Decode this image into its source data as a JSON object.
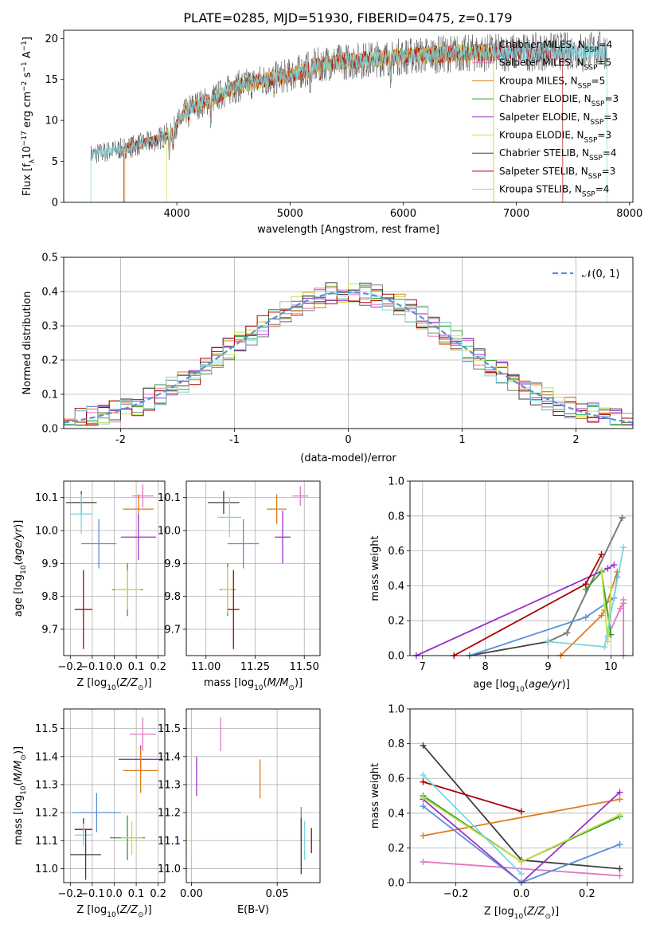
{
  "figure": {
    "suptitle": "PLATE=0285, MJD=51930, FIBERID=0475, z=0.179"
  },
  "colors": {
    "Chabrier MILES": "#7f7f7f",
    "Salpeter MILES": "#e377c2",
    "Kroupa MILES": "#e07b1a",
    "Chabrier ELODIE": "#2ca02c",
    "Salpeter ELODIE": "#9a32cd",
    "Kroupa ELODIE": "#c8e04a",
    "Chabrier STELIB": "#404040",
    "Salpeter STELIB": "#b00000",
    "Kroupa STELIB": "#7ad6e0",
    "gaussian": "#5b8fd6"
  },
  "chart_data": [
    {
      "id": "spectrum",
      "type": "line",
      "title": "PLATE=0285, MJD=51930, FIBERID=0475, z=0.179",
      "xlabel": "wavelength [Angstrom, rest frame]",
      "ylabel": "Flux [f",
      "ylabel_suffix": "10",
      "xlim": [
        3000,
        8030
      ],
      "ylim": [
        0,
        21
      ],
      "xticks": [
        4000,
        5000,
        6000,
        7000,
        8000
      ],
      "yticks": [
        0,
        5,
        10,
        15,
        20
      ],
      "data_range": [
        3240,
        7800
      ],
      "continuum": [
        [
          3240,
          5.8
        ],
        [
          3500,
          6.5
        ],
        [
          3800,
          7.5
        ],
        [
          3950,
          8.5
        ],
        [
          4100,
          11.5
        ],
        [
          4300,
          12.5
        ],
        [
          4500,
          14.0
        ],
        [
          4800,
          15.0
        ],
        [
          5000,
          15.5
        ],
        [
          5300,
          17.0
        ],
        [
          5600,
          17.3
        ],
        [
          6000,
          17.8
        ],
        [
          6500,
          18.2
        ],
        [
          7000,
          18.3
        ],
        [
          7500,
          18.5
        ],
        [
          7800,
          18.6
        ]
      ],
      "absorption_lines": [
        [
          3934,
          2.5
        ],
        [
          3968,
          2.0
        ],
        [
          4102,
          1.5
        ],
        [
          4300,
          2.5
        ],
        [
          4861,
          1.2
        ],
        [
          5175,
          2.5
        ],
        [
          5270,
          1.2
        ],
        [
          5893,
          2.5
        ],
        [
          6563,
          1.5
        ],
        [
          7590,
          1.5
        ]
      ],
      "legend": [
        {
          "label": "Chabrier MILES, N",
          "nssp": "4",
          "color": "#7f7f7f"
        },
        {
          "label": "Salpeter MILES, N",
          "nssp": "5",
          "color": "#e377c2"
        },
        {
          "label": "Kroupa MILES, N",
          "nssp": "5",
          "color": "#e07b1a"
        },
        {
          "label": "Chabrier ELODIE, N",
          "nssp": "3",
          "color": "#2ca02c"
        },
        {
          "label": "Salpeter ELODIE, N",
          "nssp": "3",
          "color": "#9a32cd"
        },
        {
          "label": "Kroupa ELODIE, N",
          "nssp": "3",
          "color": "#c8e04a"
        },
        {
          "label": "Chabrier STELIB, N",
          "nssp": "4",
          "color": "#404040"
        },
        {
          "label": "Salpeter STELIB, N",
          "nssp": "3",
          "color": "#b00000"
        },
        {
          "label": "Kroupa STELIB, N",
          "nssp": "4",
          "color": "#7ad6e0"
        }
      ],
      "model_ranges": [
        {
          "color": "#e07b1a",
          "range": [
            3540,
            6800
          ]
        },
        {
          "color": "#c8e04a",
          "range": [
            3910,
            6800
          ]
        },
        {
          "color": "#b00000",
          "range": [
            3530,
            7410
          ]
        },
        {
          "color": "#7ad6e0",
          "range": [
            3240,
            7800
          ]
        }
      ]
    },
    {
      "id": "residuals",
      "type": "line",
      "xlabel": "(data-model)/error",
      "ylabel": "Normed distribution",
      "xlim": [
        -2.5,
        2.5
      ],
      "ylim": [
        0,
        0.5
      ],
      "xticks": [
        -2,
        -1,
        0,
        1,
        2
      ],
      "yticks": [
        0.0,
        0.1,
        0.2,
        0.3,
        0.4,
        0.5
      ],
      "grid": true,
      "legend_label": "N(0,1)",
      "bin_width": 0.1,
      "series_colors": [
        "#7f7f7f",
        "#e377c2",
        "#e07b1a",
        "#2ca02c",
        "#9a32cd",
        "#c8e04a",
        "#404040",
        "#b00000",
        "#7ad6e0",
        "#5b8fd6"
      ]
    },
    {
      "id": "age_vs_Z",
      "type": "scatter",
      "xlabel": "Z [log",
      "ylabel": "age",
      "xlim": [
        -0.23,
        0.23
      ],
      "ylim": [
        9.62,
        10.15
      ],
      "xticks": [
        -0.2,
        -0.1,
        0.0,
        0.1,
        0.2
      ],
      "xticklabels": [
        "−0.2",
        "−0.1",
        "0.0",
        "0.1",
        "0.2"
      ],
      "yticks": [
        9.7,
        9.8,
        9.9,
        10.0,
        10.1
      ],
      "grid": true,
      "points": [
        {
          "color": "#404040",
          "x": -0.15,
          "xerr": 0.07,
          "y": 10.085,
          "yerr": 0.035
        },
        {
          "color": "#7ad6e0",
          "x": -0.15,
          "xerr": 0.05,
          "y": 10.05,
          "yerr": 0.06
        },
        {
          "color": "#e377c2",
          "x": 0.13,
          "xerr": 0.05,
          "y": 10.105,
          "yerr": 0.035
        },
        {
          "color": "#e07b1a",
          "x": 0.11,
          "xerr": 0.07,
          "y": 10.065,
          "yerr": 0.045
        },
        {
          "color": "#9a32cd",
          "x": 0.11,
          "xerr": 0.08,
          "y": 9.98,
          "yerr": 0.07
        },
        {
          "color": "#5b8fd6",
          "x": -0.07,
          "xerr": 0.08,
          "y": 9.96,
          "yerr": 0.075
        },
        {
          "color": "#2ca02c",
          "x": 0.06,
          "xerr": 0.07,
          "y": 9.82,
          "yerr": 0.08
        },
        {
          "color": "#c8e04a",
          "x": 0.06,
          "xerr": 0.06,
          "y": 9.82,
          "yerr": 0.06
        },
        {
          "color": "#b00000",
          "x": -0.14,
          "xerr": 0.04,
          "y": 9.76,
          "yerr": 0.12
        }
      ]
    },
    {
      "id": "age_vs_mass",
      "type": "scatter",
      "xlabel": "mass [log",
      "ylabel": "",
      "xlim": [
        10.9,
        11.58
      ],
      "ylim": [
        9.62,
        10.15
      ],
      "xticks": [
        11.0,
        11.25,
        11.5
      ],
      "xticklabels": [
        "11.00",
        "11.25",
        "11.50"
      ],
      "yticks": [
        9.7,
        9.8,
        9.9,
        10.0,
        10.1
      ],
      "grid": true,
      "points": [
        {
          "color": "#404040",
          "x": 11.09,
          "xerr": 0.08,
          "y": 10.085,
          "yerr": 0.035
        },
        {
          "color": "#7ad6e0",
          "x": 11.12,
          "xerr": 0.06,
          "y": 10.04,
          "yerr": 0.06
        },
        {
          "color": "#e377c2",
          "x": 11.48,
          "xerr": 0.04,
          "y": 10.105,
          "yerr": 0.03
        },
        {
          "color": "#e07b1a",
          "x": 11.36,
          "xerr": 0.05,
          "y": 10.065,
          "yerr": 0.045
        },
        {
          "color": "#9a32cd",
          "x": 11.39,
          "xerr": 0.04,
          "y": 9.98,
          "yerr": 0.08
        },
        {
          "color": "#5b8fd6",
          "x": 11.19,
          "xerr": 0.08,
          "y": 9.96,
          "yerr": 0.075
        },
        {
          "color": "#2ca02c",
          "x": 11.11,
          "xerr": 0.04,
          "y": 9.82,
          "yerr": 0.08
        },
        {
          "color": "#c8e04a",
          "x": 11.11,
          "xerr": 0.03,
          "y": 9.82,
          "yerr": 0.07
        },
        {
          "color": "#b00000",
          "x": 11.14,
          "xerr": 0.03,
          "y": 9.76,
          "yerr": 0.12
        }
      ]
    },
    {
      "id": "weight_vs_age",
      "type": "line",
      "xlabel": "age",
      "ylabel": "mass weight",
      "xlim": [
        6.8,
        10.35
      ],
      "ylim": [
        0,
        1.0
      ],
      "xticks": [
        7,
        8,
        9,
        10
      ],
      "yticks": [
        0.0,
        0.2,
        0.4,
        0.6,
        0.8,
        1.0
      ],
      "grid": true,
      "series": [
        {
          "color": "#404040",
          "x": [
            7.75,
            9.0,
            9.3,
            10.18
          ],
          "y": [
            0.0,
            0.08,
            0.13,
            0.79
          ]
        },
        {
          "color": "#7f7f7f",
          "x": [
            9.0,
            9.3,
            10.18
          ],
          "y": [
            0.08,
            0.13,
            0.79
          ]
        },
        {
          "color": "#e377c2",
          "x": [
            9.95,
            10.15,
            10.2,
            10.2,
            10.2
          ],
          "y": [
            0.11,
            0.27,
            0.3,
            0.32,
            0.0
          ]
        },
        {
          "color": "#e07b1a",
          "x": [
            9.2,
            9.85,
            9.9,
            10.1
          ],
          "y": [
            0.0,
            0.23,
            0.26,
            0.48
          ]
        },
        {
          "color": "#9a32cd",
          "x": [
            6.9,
            9.95,
            10.05
          ],
          "y": [
            0.0,
            0.5,
            0.52
          ]
        },
        {
          "color": "#5b8fd6",
          "x": [
            7.75,
            9.6,
            10.05,
            10.1
          ],
          "y": [
            0.0,
            0.22,
            0.33,
            0.45
          ]
        },
        {
          "color": "#2ca02c",
          "x": [
            9.6,
            9.85,
            10.0
          ],
          "y": [
            0.38,
            0.48,
            0.12
          ]
        },
        {
          "color": "#c8e04a",
          "x": [
            9.85,
            9.95,
            10.0
          ],
          "y": [
            0.49,
            0.08,
            0.39
          ]
        },
        {
          "color": "#b00000",
          "x": [
            7.5,
            9.6,
            9.85
          ],
          "y": [
            0.0,
            0.41,
            0.58
          ]
        },
        {
          "color": "#7ad6e0",
          "x": [
            9.0,
            9.9,
            10.2
          ],
          "y": [
            0.08,
            0.05,
            0.62
          ]
        }
      ]
    },
    {
      "id": "mass_vs_Z",
      "type": "scatter",
      "xlabel": "Z [log",
      "ylabel": "mass",
      "xlim": [
        -0.23,
        0.23
      ],
      "ylim": [
        10.95,
        11.57
      ],
      "xticks": [
        -0.2,
        -0.1,
        0.0,
        0.1,
        0.2
      ],
      "xticklabels": [
        "−0.2",
        "−0.1",
        "0.0",
        "0.1",
        "0.2"
      ],
      "yticks": [
        11.0,
        11.1,
        11.2,
        11.3,
        11.4,
        11.5
      ],
      "grid": true,
      "points": [
        {
          "color": "#e377c2",
          "x": 0.13,
          "xerr": 0.06,
          "y": 11.48,
          "yerr": 0.06
        },
        {
          "color": "#9a32cd",
          "x": 0.12,
          "xerr": 0.1,
          "y": 11.39,
          "yerr": 0.05
        },
        {
          "color": "#e07b1a",
          "x": 0.12,
          "xerr": 0.08,
          "y": 11.35,
          "yerr": 0.08
        },
        {
          "color": "#5b8fd6",
          "x": -0.08,
          "xerr": 0.11,
          "y": 11.2,
          "yerr": 0.07
        },
        {
          "color": "#b00000",
          "x": -0.14,
          "xerr": 0.04,
          "y": 11.14,
          "yerr": 0.04
        },
        {
          "color": "#7ad6e0",
          "x": -0.14,
          "xerr": 0.04,
          "y": 11.12,
          "yerr": 0.04
        },
        {
          "color": "#2ca02c",
          "x": 0.06,
          "xerr": 0.08,
          "y": 11.11,
          "yerr": 0.08
        },
        {
          "color": "#c8e04a",
          "x": 0.08,
          "xerr": 0.05,
          "y": 11.11,
          "yerr": 0.06
        },
        {
          "color": "#404040",
          "x": -0.13,
          "xerr": 0.07,
          "y": 11.05,
          "yerr": 0.09
        }
      ]
    },
    {
      "id": "mass_vs_ebv",
      "type": "scatter",
      "xlabel": "E(B-V)",
      "ylabel": "",
      "xlim": [
        -0.003,
        0.075
      ],
      "ylim": [
        10.95,
        11.57
      ],
      "xticks": [
        0.0,
        0.05
      ],
      "xticklabels": [
        "0.00",
        "0.05"
      ],
      "yticks": [
        11.0,
        11.1,
        11.2,
        11.3,
        11.4,
        11.5
      ],
      "grid": true,
      "points": [
        {
          "color": "#e377c2",
          "x": 0.017,
          "y": 11.48,
          "yerr": 0.06
        },
        {
          "color": "#9a32cd",
          "x": 0.003,
          "y": 11.33,
          "yerr": 0.07
        },
        {
          "color": "#e07b1a",
          "x": 0.04,
          "y": 11.32,
          "yerr": 0.07
        },
        {
          "color": "#5b8fd6",
          "x": 0.064,
          "y": 11.16,
          "yerr": 0.06
        },
        {
          "color": "#c8e04a",
          "x": 0.0,
          "y": 11.11,
          "yerr": 0.07
        },
        {
          "color": "#404040",
          "x": 0.064,
          "y": 11.08,
          "yerr": 0.1
        },
        {
          "color": "#7ad6e0",
          "x": 0.066,
          "y": 11.1,
          "yerr": 0.07
        },
        {
          "color": "#b00000",
          "x": 0.07,
          "y": 11.1,
          "yerr": 0.045
        }
      ]
    },
    {
      "id": "weight_vs_Z",
      "type": "line",
      "xlabel": "Z [log",
      "ylabel": "mass weight",
      "xlim": [
        -0.34,
        0.34
      ],
      "ylim": [
        0,
        1.0
      ],
      "xticks": [
        -0.2,
        0.0,
        0.2
      ],
      "xticklabels": [
        "−0.2",
        "0.0",
        "0.2"
      ],
      "yticks": [
        0.0,
        0.2,
        0.4,
        0.6,
        0.8,
        1.0
      ],
      "grid": true,
      "series": [
        {
          "color": "#404040",
          "x": [
            -0.3,
            0.0,
            0.3
          ],
          "y": [
            0.79,
            0.13,
            0.08
          ]
        },
        {
          "color": "#e377c2",
          "x": [
            -0.3,
            0.3
          ],
          "y": [
            0.12,
            0.04
          ]
        },
        {
          "color": "#e07b1a",
          "x": [
            -0.3,
            0.3
          ],
          "y": [
            0.27,
            0.48
          ]
        },
        {
          "color": "#9a32cd",
          "x": [
            -0.3,
            0.0,
            0.3
          ],
          "y": [
            0.48,
            0.0,
            0.52
          ]
        },
        {
          "color": "#5b8fd6",
          "x": [
            -0.3,
            0.0,
            0.3
          ],
          "y": [
            0.44,
            0.0,
            0.22
          ]
        },
        {
          "color": "#2ca02c",
          "x": [
            -0.3,
            0.0,
            0.3
          ],
          "y": [
            0.5,
            0.12,
            0.38
          ]
        },
        {
          "color": "#c8e04a",
          "x": [
            -0.3,
            0.0,
            0.3
          ],
          "y": [
            0.49,
            0.12,
            0.39
          ]
        },
        {
          "color": "#b00000",
          "x": [
            -0.3,
            0.0
          ],
          "y": [
            0.58,
            0.41
          ]
        },
        {
          "color": "#7ad6e0",
          "x": [
            -0.3,
            0.0
          ],
          "y": [
            0.62,
            0.05
          ]
        }
      ]
    }
  ]
}
